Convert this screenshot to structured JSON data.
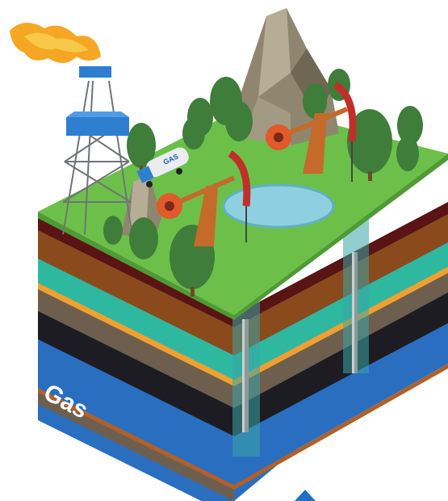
{
  "labels": {
    "gas_layer": "Gas",
    "truck_tank": "GAS"
  },
  "colors": {
    "background": "#ffffff",
    "grass": "#6cc04a",
    "grass_dark": "#4f9a35",
    "layer_dark_red": "#5a1414",
    "layer_brown": "#8a4a1c",
    "layer_teal": "#2eb8a0",
    "layer_orange": "#f0a030",
    "layer_gray_brown": "#6e5e4e",
    "layer_black": "#1c1c22",
    "layer_blue": "#2a6ec0",
    "layer_rust": "#b06028",
    "water": "#8fd0e0",
    "flame": "#f5a623",
    "rig_blue": "#2f7fd0",
    "rock": "#8f8670",
    "tree": "#3f7d3a",
    "pump_red": "#c0302a",
    "arrow_blue": "#1f6fc6"
  },
  "icons": [
    "flare-flame-icon",
    "drilling-rig-icon",
    "gas-tanker-truck-icon",
    "pumpjack-icon",
    "mountain-rock-icon",
    "pine-tree-icon",
    "pond-icon",
    "well-pipe-icon",
    "arrow-up-icon"
  ]
}
